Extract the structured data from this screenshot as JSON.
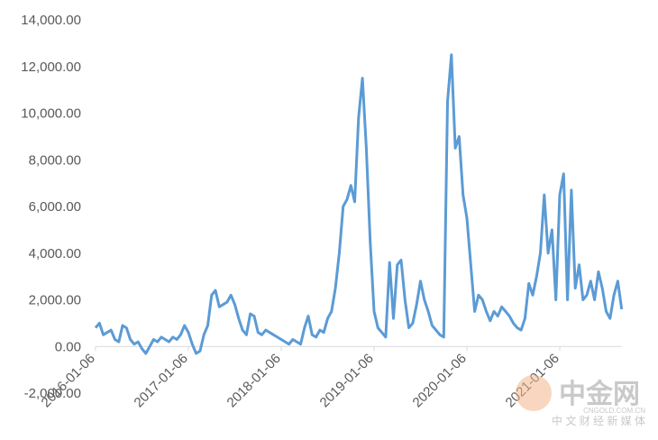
{
  "chart_data": {
    "type": "line",
    "categories": [
      "2016-01-06",
      null,
      null,
      null,
      null,
      null,
      null,
      null,
      null,
      null,
      null,
      null,
      null,
      null,
      null,
      null,
      null,
      null,
      null,
      null,
      null,
      null,
      null,
      null,
      "2017-01-06",
      null,
      null,
      null,
      null,
      null,
      null,
      null,
      null,
      null,
      null,
      null,
      null,
      null,
      null,
      null,
      null,
      null,
      null,
      null,
      null,
      null,
      null,
      null,
      "2018-01-06",
      null,
      null,
      null,
      null,
      null,
      null,
      null,
      null,
      null,
      null,
      null,
      null,
      null,
      null,
      null,
      null,
      null,
      null,
      null,
      null,
      null,
      null,
      null,
      "2019-01-06",
      null,
      null,
      null,
      null,
      null,
      null,
      null,
      null,
      null,
      null,
      null,
      null,
      null,
      null,
      null,
      null,
      null,
      null,
      null,
      null,
      null,
      null,
      null,
      "2020-01-06",
      null,
      null,
      null,
      null,
      null,
      null,
      null,
      null,
      null,
      null,
      null,
      null,
      null,
      null,
      null,
      null,
      null,
      null,
      null,
      null,
      null,
      null,
      null,
      "2021-01-06",
      null,
      null,
      null,
      null,
      null,
      null,
      null,
      null,
      null,
      null,
      null,
      null,
      null,
      null,
      null,
      null
    ],
    "series": [
      {
        "color": "#5b9bd5",
        "values": [
          800,
          1000,
          500,
          600,
          700,
          300,
          200,
          900,
          800,
          300,
          100,
          200,
          -100,
          -300,
          0,
          300,
          200,
          400,
          300,
          200,
          400,
          300,
          500,
          900,
          600,
          100,
          -300,
          -200,
          500,
          900,
          2200,
          2400,
          1700,
          1800,
          1900,
          2200,
          1800,
          1200,
          700,
          500,
          1400,
          1300,
          600,
          500,
          700,
          600,
          500,
          400,
          300,
          200,
          100,
          300,
          200,
          100,
          800,
          1300,
          500,
          400,
          700,
          600,
          1200,
          1500,
          2500,
          4000,
          6000,
          6300,
          6900,
          6200,
          9800,
          11500,
          8500,
          4500,
          1500,
          800,
          600,
          400,
          3600,
          1200,
          3500,
          3700,
          2000,
          800,
          1000,
          1800,
          2800,
          2000,
          1500,
          900,
          700,
          500,
          400,
          10500,
          12500,
          8500,
          9000,
          6500,
          5500,
          3500,
          1500,
          2200,
          2000,
          1500,
          1100,
          1500,
          1300,
          1700,
          1500,
          1300,
          1000,
          800,
          700,
          1200,
          2700,
          2200,
          3000,
          4000,
          6500,
          4000,
          5000,
          2000,
          6500,
          7400,
          2000,
          6700,
          2500,
          3500,
          2000,
          2200,
          2800,
          2000,
          3200,
          2500,
          1500,
          1200,
          2200,
          2800,
          1600
        ]
      }
    ],
    "ylim": [
      -2000,
      14000
    ],
    "yticks": [
      {
        "value": -2000,
        "label": "-2,000.00"
      },
      {
        "value": 0,
        "label": "0.00"
      },
      {
        "value": 2000,
        "label": "2,000.00"
      },
      {
        "value": 4000,
        "label": "4,000.00"
      },
      {
        "value": 6000,
        "label": "6,000.00"
      },
      {
        "value": 8000,
        "label": "8,000.00"
      },
      {
        "value": 10000,
        "label": "10,000.00"
      },
      {
        "value": 12000,
        "label": "12,000.00"
      },
      {
        "value": 14000,
        "label": "14,000.00"
      }
    ],
    "grid": false
  },
  "watermark": {
    "logo": "中金网",
    "site": "CNGOLD.COM.CN",
    "slogan": "中 文 财 经 新 媒 体"
  }
}
